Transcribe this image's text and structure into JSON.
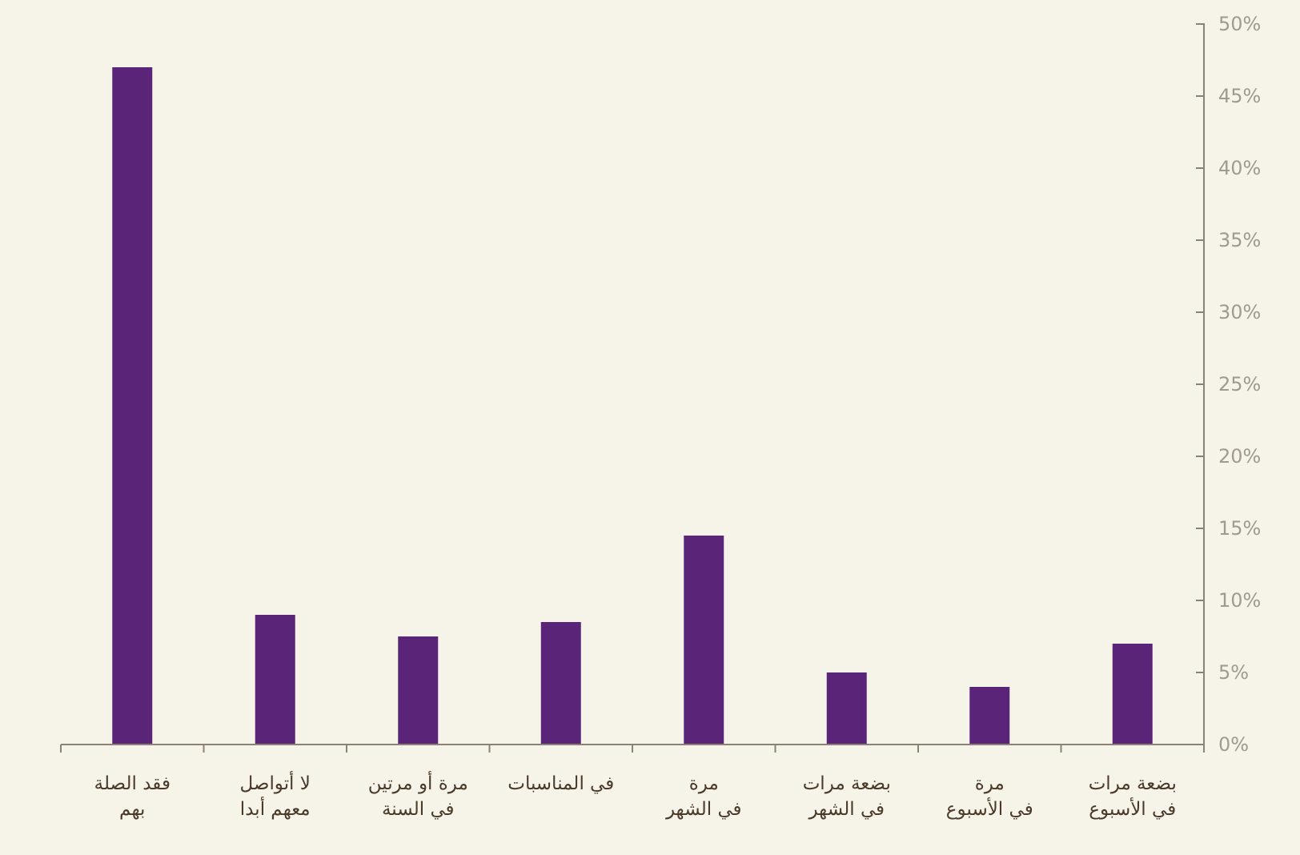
{
  "chart_data": {
    "type": "bar",
    "categories": [
      "فقد الصلة\nبهم",
      "لا أتواصل\nمعهم أبدا",
      "مرة أو مرتين\nفي السنة",
      "في المناسبات",
      "مرة\nفي الشهر",
      "بضعة مرات\nفي الشهر",
      "مرة\nفي الأسبوع",
      "بضعة مرات\nفي الأسبوع"
    ],
    "values": [
      47,
      9,
      7.5,
      8.5,
      14.5,
      5,
      4,
      7
    ],
    "color": "#5a2479",
    "ylim": [
      0,
      50
    ],
    "yticks": [
      {
        "value": 0,
        "label": "0%"
      },
      {
        "value": 5,
        "label": "5%"
      },
      {
        "value": 10,
        "label": "10%"
      },
      {
        "value": 15,
        "label": "15%"
      },
      {
        "value": 20,
        "label": "20%"
      },
      {
        "value": 25,
        "label": "25%"
      },
      {
        "value": 30,
        "label": "30%"
      },
      {
        "value": 35,
        "label": "35%"
      },
      {
        "value": 40,
        "label": "40%"
      },
      {
        "value": 45,
        "label": "45%"
      },
      {
        "value": 50,
        "label": "50%"
      }
    ],
    "grid": false
  }
}
